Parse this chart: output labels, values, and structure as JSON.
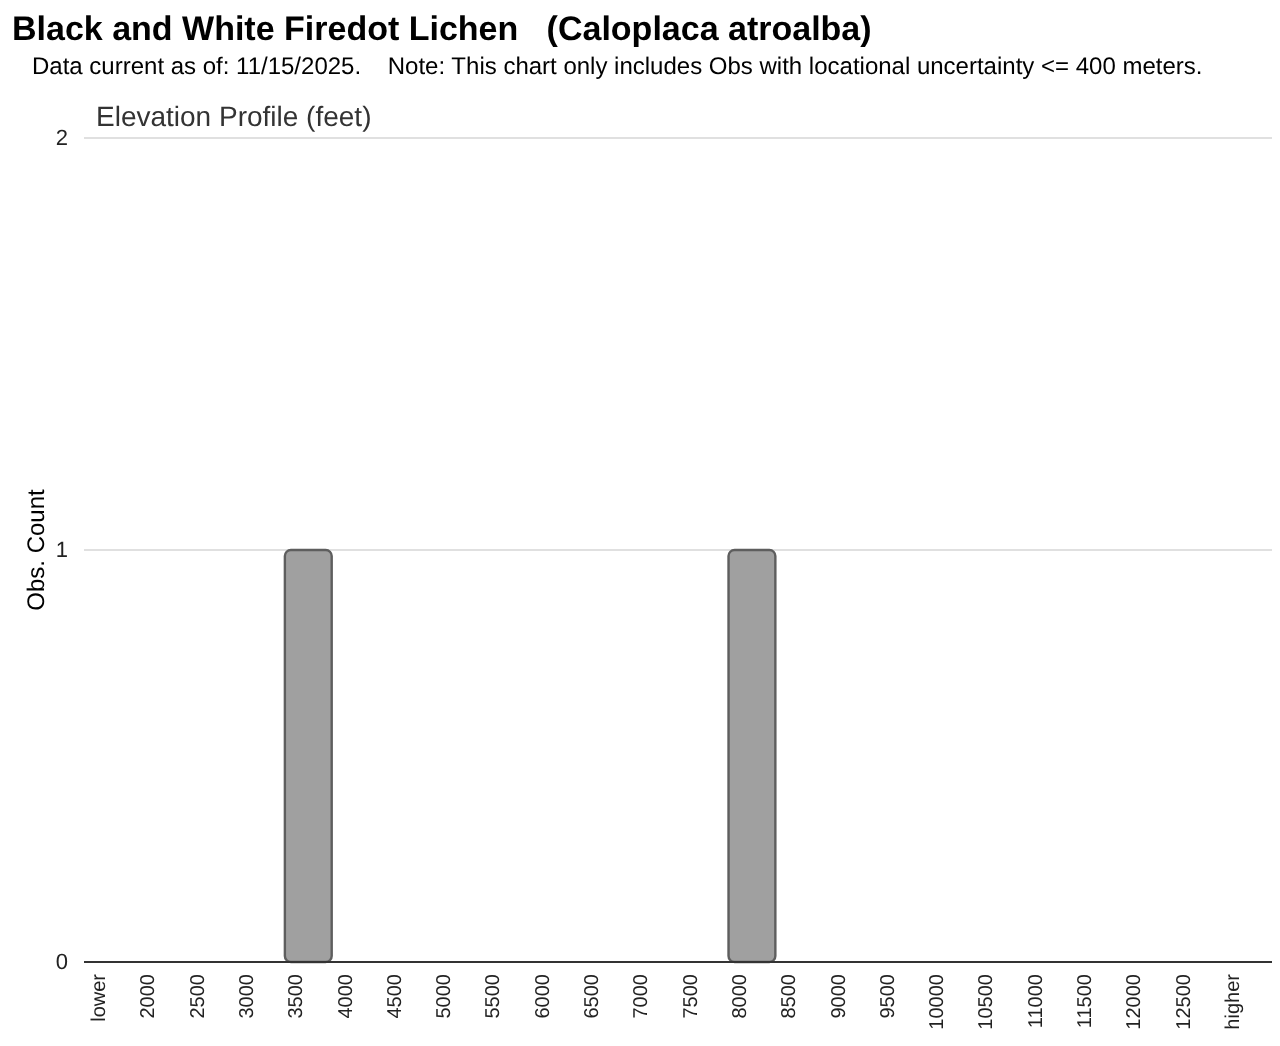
{
  "chart_data": {
    "type": "bar",
    "title": "Black and White Firedot Lichen   (Caloplaca atroalba)",
    "subtitle": "Data current as of: 11/15/2025.    Note: This chart only includes Obs with locational uncertainty <= 400 meters.",
    "annotations": [
      "Elevation Profile (feet)"
    ],
    "ylabel": "Obs. Count",
    "categories": [
      "lower",
      "2000",
      "2500",
      "3000",
      "3500",
      "4000",
      "4500",
      "5000",
      "5500",
      "6000",
      "6500",
      "7000",
      "7500",
      "8000",
      "8500",
      "9000",
      "9500",
      "10000",
      "10500",
      "11000",
      "11500",
      "12000",
      "12500",
      "higher"
    ],
    "values": [
      0,
      0,
      0,
      0,
      1,
      0,
      0,
      0,
      0,
      0,
      0,
      0,
      0,
      1,
      0,
      0,
      0,
      0,
      0,
      0,
      0,
      0,
      0,
      0
    ],
    "color": "#a0a0a0",
    "ylim": [
      0,
      2
    ],
    "yticks": [
      0,
      1,
      2
    ],
    "grid": "y"
  }
}
